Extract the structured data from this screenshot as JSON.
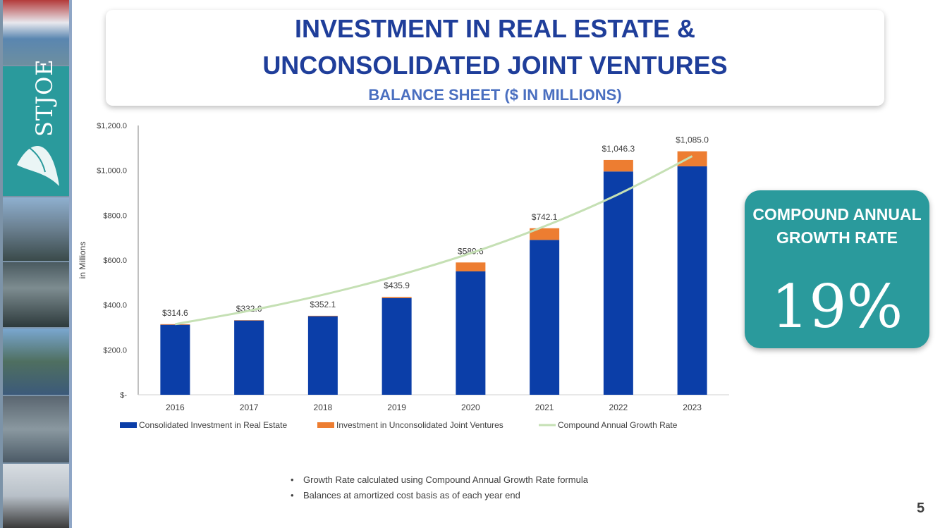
{
  "title_line1": "INVESTMENT IN REAL ESTATE &",
  "title_line2": "UNCONSOLIDATED JOINT VENTURES",
  "subtitle": "BALANCE SHEET ($ IN MILLIONS)",
  "logo_text": "STJOE",
  "cagr": {
    "label": "COMPOUND ANNUAL GROWTH RATE",
    "value": "19%",
    "color": "#2a9a9c"
  },
  "notes": [
    "Growth Rate calculated using Compound Annual Growth Rate formula",
    "Balances at amortized cost basis as of each year end"
  ],
  "page_number": "5",
  "colors": {
    "consolidated": "#0b3ea8",
    "jv": "#ed7d31",
    "cagr_line": "#c5e0b4",
    "title": "#1f3e9a",
    "teal": "#2a9a9c"
  },
  "chart_data": {
    "type": "bar",
    "stacked": true,
    "categories": [
      "2016",
      "2017",
      "2018",
      "2019",
      "2020",
      "2021",
      "2022",
      "2023"
    ],
    "series": [
      {
        "name": "Consolidated Investment in Real Estate",
        "values": [
          312,
          331,
          350,
          431,
          550,
          690,
          995,
          1018
        ]
      },
      {
        "name": "Investment in Unconsolidated Joint Ventures",
        "values": [
          2.6,
          1.6,
          2.1,
          4.9,
          39.6,
          52.1,
          51.3,
          67.0
        ]
      },
      {
        "name": "Compound Annual Growth Rate",
        "type": "line",
        "values": [
          314.6,
          374.4,
          445.5,
          530.1,
          630.9,
          750.8,
          893.4,
          1063.2
        ]
      }
    ],
    "totals": [
      314.6,
      332.6,
      352.1,
      435.9,
      589.6,
      742.1,
      1046.3,
      1085.0
    ],
    "total_labels": [
      "$314.6",
      "$332.6",
      "$352.1",
      "$435.9",
      "$589.6",
      "$742.1",
      "$1,046.3",
      "$1,085.0"
    ],
    "ylabel": "in Millions",
    "ylim": [
      0,
      1200
    ],
    "yticks": [
      0,
      200,
      400,
      600,
      800,
      1000,
      1200
    ],
    "ytick_labels": [
      "$-",
      "$200.0",
      "$400.0",
      "$600.0",
      "$800.0",
      "$1,000.0",
      "$1,200.0"
    ],
    "legend_position": "bottom",
    "grid": false
  }
}
